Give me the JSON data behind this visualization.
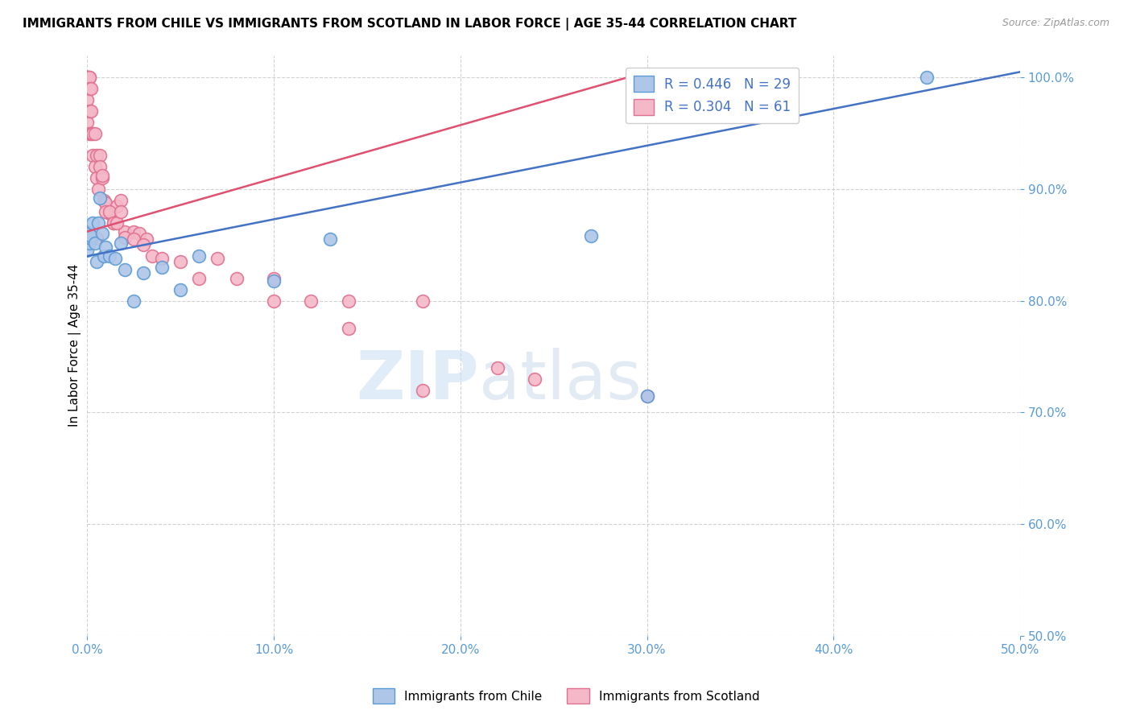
{
  "title": "IMMIGRANTS FROM CHILE VS IMMIGRANTS FROM SCOTLAND IN LABOR FORCE | AGE 35-44 CORRELATION CHART",
  "source": "Source: ZipAtlas.com",
  "ylabel": "In Labor Force | Age 35-44",
  "xlim": [
    0.0,
    0.5
  ],
  "ylim": [
    0.5,
    1.02
  ],
  "xticks": [
    0.0,
    0.1,
    0.2,
    0.3,
    0.4,
    0.5
  ],
  "yticks": [
    0.5,
    0.6,
    0.7,
    0.8,
    0.9,
    1.0
  ],
  "chile_color": "#aec6e8",
  "chile_edge": "#5b9bd5",
  "scotland_color": "#f4b8c8",
  "scotland_edge": "#e07090",
  "chile_R": 0.446,
  "chile_N": 29,
  "scotland_R": 0.304,
  "scotland_N": 61,
  "chile_line_color": "#4472c4",
  "scotland_line_color": "#e05070",
  "watermark_zip": "ZIP",
  "watermark_atlas": "atlas",
  "chile_x": [
    0.0,
    0.0,
    0.0,
    0.001,
    0.001,
    0.002,
    0.002,
    0.003,
    0.004,
    0.005,
    0.006,
    0.007,
    0.008,
    0.009,
    0.01,
    0.012,
    0.015,
    0.018,
    0.02,
    0.025,
    0.03,
    0.04,
    0.05,
    0.06,
    0.1,
    0.13,
    0.27,
    0.3,
    0.45
  ],
  "chile_y": [
    0.845,
    0.855,
    0.862,
    0.852,
    0.86,
    0.856,
    0.858,
    0.87,
    0.852,
    0.835,
    0.87,
    0.892,
    0.86,
    0.84,
    0.848,
    0.84,
    0.838,
    0.852,
    0.828,
    0.8,
    0.825,
    0.83,
    0.81,
    0.84,
    0.818,
    0.855,
    0.858,
    0.715,
    1.0
  ],
  "scotland_x": [
    0.0,
    0.0,
    0.0,
    0.0,
    0.0,
    0.0,
    0.0,
    0.001,
    0.001,
    0.001,
    0.001,
    0.001,
    0.002,
    0.002,
    0.002,
    0.003,
    0.003,
    0.004,
    0.004,
    0.005,
    0.005,
    0.006,
    0.007,
    0.008,
    0.009,
    0.01,
    0.012,
    0.014,
    0.016,
    0.018,
    0.02,
    0.025,
    0.028,
    0.032,
    0.005,
    0.007,
    0.008,
    0.01,
    0.012,
    0.014,
    0.016,
    0.018,
    0.02,
    0.025,
    0.03,
    0.035,
    0.04,
    0.05,
    0.06,
    0.07,
    0.08,
    0.1,
    0.12,
    0.14,
    0.18,
    0.22,
    0.1,
    0.14,
    0.18,
    0.24,
    0.3
  ],
  "scotland_y": [
    1.0,
    1.0,
    1.0,
    1.0,
    1.0,
    0.98,
    0.96,
    1.0,
    1.0,
    0.99,
    0.97,
    0.95,
    0.99,
    0.97,
    0.95,
    0.95,
    0.93,
    0.95,
    0.92,
    0.93,
    0.91,
    0.9,
    0.93,
    0.91,
    0.89,
    0.888,
    0.878,
    0.87,
    0.885,
    0.89,
    0.862,
    0.862,
    0.86,
    0.855,
    0.856,
    0.92,
    0.912,
    0.88,
    0.88,
    0.87,
    0.87,
    0.88,
    0.857,
    0.855,
    0.85,
    0.84,
    0.838,
    0.835,
    0.82,
    0.838,
    0.82,
    0.8,
    0.8,
    0.775,
    0.72,
    0.74,
    0.82,
    0.8,
    0.8,
    0.73,
    0.715
  ],
  "chile_line_x": [
    0.0,
    0.5
  ],
  "chile_line_y": [
    0.84,
    1.005
  ],
  "scotland_line_x": [
    0.0,
    0.3
  ],
  "scotland_line_y": [
    0.862,
    1.005
  ]
}
